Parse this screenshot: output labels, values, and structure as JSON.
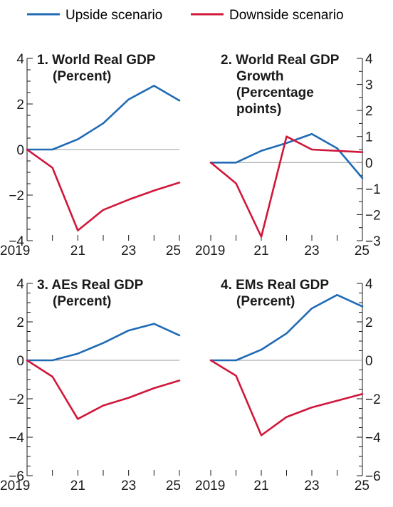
{
  "legend": [
    {
      "label": "Upside scenario",
      "color": "#1f6bb5"
    },
    {
      "label": "Downside scenario",
      "color": "#d0173a"
    }
  ],
  "chart_data": [
    {
      "type": "line",
      "title_lines": [
        "1. World Real GDP",
        "(Percent)"
      ],
      "x": [
        2019,
        2020,
        2021,
        2022,
        2023,
        2024,
        2025
      ],
      "xticks": [
        "2019",
        "21",
        "23",
        "25"
      ],
      "ylim": [
        -4,
        4
      ],
      "yticks": [
        -4,
        -2,
        0,
        2,
        4
      ],
      "yticks_text": [
        "−4",
        "−2",
        "0",
        "2",
        "4"
      ],
      "y_axis_side": "left",
      "series": [
        {
          "name": "Upside scenario",
          "values": [
            0,
            0,
            0.45,
            1.15,
            2.2,
            2.8,
            2.15
          ]
        },
        {
          "name": "Downside scenario",
          "values": [
            0,
            -0.8,
            -3.55,
            -2.65,
            -2.2,
            -1.8,
            -1.45
          ]
        }
      ]
    },
    {
      "type": "line",
      "title_lines": [
        "2. World Real GDP",
        "Growth",
        "(Percentage",
        "points)"
      ],
      "x": [
        2019,
        2020,
        2021,
        2022,
        2023,
        2024,
        2025
      ],
      "xticks": [
        "2019",
        "21",
        "23",
        "25"
      ],
      "ylim": [
        -3,
        4
      ],
      "yticks": [
        -3,
        -2,
        -1,
        0,
        1,
        2,
        3,
        4
      ],
      "yticks_text": [
        "−3",
        "−2",
        "−1",
        "0",
        "1",
        "2",
        "3",
        "4"
      ],
      "y_axis_side": "right",
      "series": [
        {
          "name": "Upside scenario",
          "values": [
            0,
            0,
            0.45,
            0.75,
            1.1,
            0.55,
            -0.6
          ]
        },
        {
          "name": "Downside scenario",
          "values": [
            0,
            -0.8,
            -2.85,
            1.0,
            0.5,
            0.45,
            0.4
          ]
        }
      ]
    },
    {
      "type": "line",
      "title_lines": [
        "3. AEs Real GDP",
        "(Percent)"
      ],
      "x": [
        2019,
        2020,
        2021,
        2022,
        2023,
        2024,
        2025
      ],
      "xticks": [
        "2019",
        "21",
        "23",
        "25"
      ],
      "ylim": [
        -6,
        4
      ],
      "yticks": [
        -6,
        -4,
        -2,
        0,
        2,
        4
      ],
      "yticks_text": [
        "−6",
        "−4",
        "−2",
        "0",
        "2",
        "4"
      ],
      "y_axis_side": "left",
      "series": [
        {
          "name": "Upside scenario",
          "values": [
            0,
            0,
            0.35,
            0.9,
            1.55,
            1.9,
            1.3
          ]
        },
        {
          "name": "Downside scenario",
          "values": [
            0,
            -0.85,
            -3.05,
            -2.35,
            -1.95,
            -1.45,
            -1.05
          ]
        }
      ]
    },
    {
      "type": "line",
      "title_lines": [
        "4. EMs Real GDP",
        "(Percent)"
      ],
      "x": [
        2019,
        2020,
        2021,
        2022,
        2023,
        2024,
        2025
      ],
      "xticks": [
        "2019",
        "21",
        "23",
        "25"
      ],
      "ylim": [
        -6,
        4
      ],
      "yticks": [
        -6,
        -4,
        -2,
        0,
        2,
        4
      ],
      "yticks_text": [
        "−6",
        "−4",
        "−2",
        "0",
        "2",
        "4"
      ],
      "y_axis_side": "right",
      "series": [
        {
          "name": "Upside scenario",
          "values": [
            0,
            0,
            0.55,
            1.4,
            2.7,
            3.4,
            2.8
          ]
        },
        {
          "name": "Downside scenario",
          "values": [
            0,
            -0.8,
            -3.9,
            -2.95,
            -2.45,
            -2.1,
            -1.75
          ]
        }
      ]
    }
  ]
}
